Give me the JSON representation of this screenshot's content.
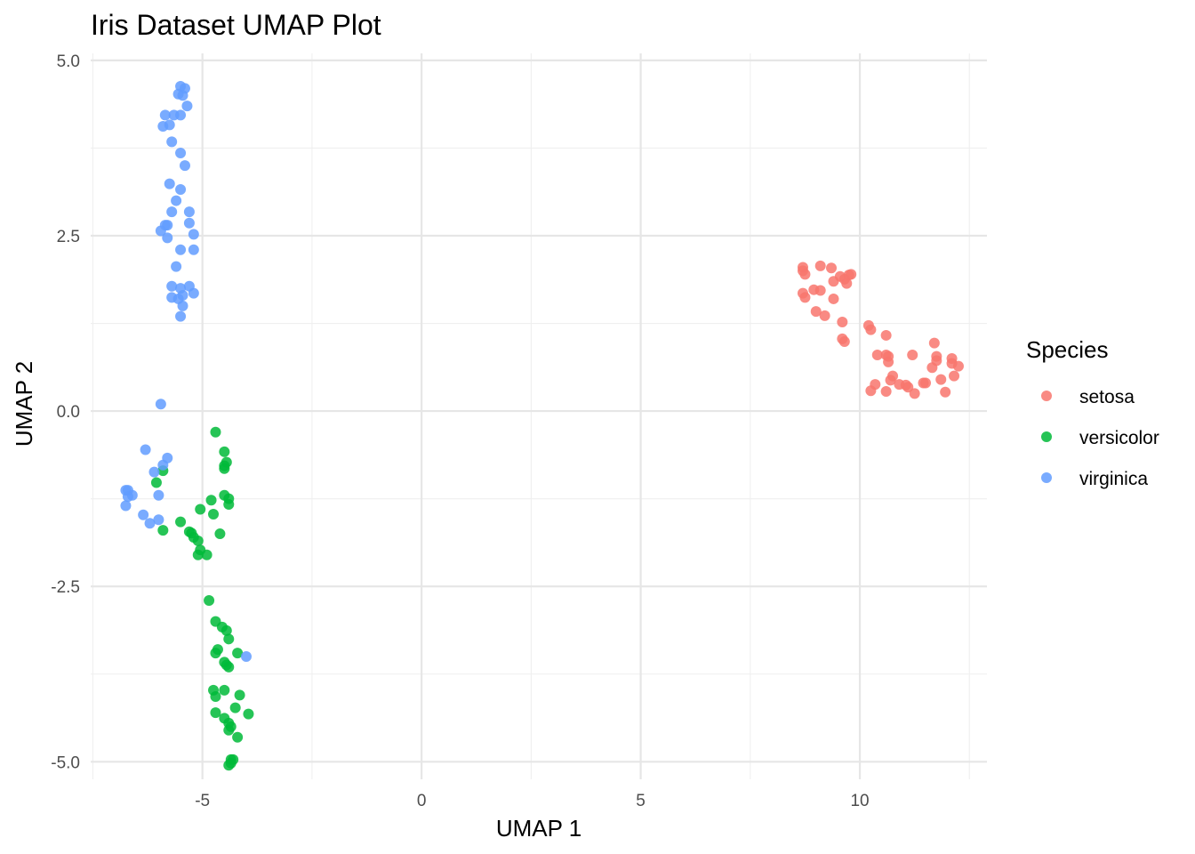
{
  "chart_data": {
    "type": "scatter",
    "title": "Iris Dataset UMAP Plot",
    "xlabel": "UMAP 1",
    "ylabel": "UMAP 2",
    "xlim": [
      -7.55,
      12.9
    ],
    "ylim": [
      -5.25,
      5.1
    ],
    "x_ticks": [
      -5,
      0,
      5,
      10
    ],
    "x_tick_labels": [
      "-5",
      "0",
      "5",
      "10"
    ],
    "y_ticks": [
      -5,
      -2.5,
      0,
      2.5,
      5
    ],
    "y_tick_labels": [
      "-5.0",
      "-2.5",
      "0.0",
      "2.5",
      "5.0"
    ],
    "grid": true,
    "legend": {
      "title": "Species",
      "position": "right"
    },
    "series": [
      {
        "name": "setosa",
        "color": "#F8766D",
        "points": [
          [
            8.7,
            2.05
          ],
          [
            8.7,
            2.0
          ],
          [
            8.75,
            1.95
          ],
          [
            9.1,
            2.07
          ],
          [
            9.35,
            2.04
          ],
          [
            9.55,
            1.92
          ],
          [
            9.65,
            1.88
          ],
          [
            9.75,
            1.94
          ],
          [
            9.8,
            1.95
          ],
          [
            9.4,
            1.85
          ],
          [
            9.7,
            1.82
          ],
          [
            8.7,
            1.68
          ],
          [
            8.75,
            1.62
          ],
          [
            8.95,
            1.73
          ],
          [
            9.1,
            1.72
          ],
          [
            9.4,
            1.6
          ],
          [
            9.0,
            1.42
          ],
          [
            9.2,
            1.36
          ],
          [
            9.6,
            1.27
          ],
          [
            9.6,
            1.03
          ],
          [
            9.65,
            0.99
          ],
          [
            10.2,
            1.22
          ],
          [
            10.25,
            1.16
          ],
          [
            10.6,
            1.08
          ],
          [
            10.4,
            0.8
          ],
          [
            10.6,
            0.8
          ],
          [
            10.65,
            0.78
          ],
          [
            10.65,
            0.7
          ],
          [
            11.2,
            0.8
          ],
          [
            11.7,
            0.97
          ],
          [
            11.75,
            0.78
          ],
          [
            11.75,
            0.72
          ],
          [
            12.1,
            0.75
          ],
          [
            12.1,
            0.68
          ],
          [
            12.25,
            0.64
          ],
          [
            10.75,
            0.5
          ],
          [
            10.7,
            0.44
          ],
          [
            10.35,
            0.38
          ],
          [
            10.25,
            0.29
          ],
          [
            10.6,
            0.28
          ],
          [
            10.9,
            0.38
          ],
          [
            11.05,
            0.37
          ],
          [
            11.1,
            0.34
          ],
          [
            11.25,
            0.25
          ],
          [
            11.45,
            0.4
          ],
          [
            11.5,
            0.4
          ],
          [
            11.65,
            0.62
          ],
          [
            11.85,
            0.45
          ],
          [
            11.95,
            0.27
          ],
          [
            12.15,
            0.5
          ]
        ]
      },
      {
        "name": "versicolor",
        "color": "#00BA38",
        "points": [
          [
            -4.7,
            -0.3
          ],
          [
            -4.5,
            -0.58
          ],
          [
            -4.45,
            -0.73
          ],
          [
            -4.5,
            -0.78
          ],
          [
            -4.5,
            -0.82
          ],
          [
            -4.5,
            -1.2
          ],
          [
            -4.4,
            -1.25
          ],
          [
            -4.4,
            -1.33
          ],
          [
            -4.8,
            -1.27
          ],
          [
            -5.05,
            -1.4
          ],
          [
            -4.75,
            -1.47
          ],
          [
            -4.6,
            -1.75
          ],
          [
            -5.5,
            -1.58
          ],
          [
            -5.3,
            -1.72
          ],
          [
            -5.25,
            -1.74
          ],
          [
            -5.2,
            -1.8
          ],
          [
            -5.1,
            -1.85
          ],
          [
            -5.05,
            -1.98
          ],
          [
            -5.1,
            -2.05
          ],
          [
            -4.9,
            -2.05
          ],
          [
            -6.05,
            -1.02
          ],
          [
            -5.9,
            -0.85
          ],
          [
            -5.9,
            -1.7
          ],
          [
            -4.85,
            -2.7
          ],
          [
            -4.7,
            -3.0
          ],
          [
            -4.55,
            -3.08
          ],
          [
            -4.45,
            -3.13
          ],
          [
            -4.4,
            -3.25
          ],
          [
            -4.65,
            -3.4
          ],
          [
            -4.7,
            -3.45
          ],
          [
            -4.2,
            -3.45
          ],
          [
            -4.5,
            -3.58
          ],
          [
            -4.45,
            -3.62
          ],
          [
            -4.4,
            -3.65
          ],
          [
            -4.75,
            -3.98
          ],
          [
            -4.5,
            -3.98
          ],
          [
            -4.15,
            -4.05
          ],
          [
            -4.7,
            -4.07
          ],
          [
            -4.7,
            -4.3
          ],
          [
            -4.25,
            -4.23
          ],
          [
            -4.5,
            -4.38
          ],
          [
            -4.4,
            -4.45
          ],
          [
            -4.35,
            -4.5
          ],
          [
            -4.4,
            -4.55
          ],
          [
            -4.2,
            -4.65
          ],
          [
            -3.95,
            -4.32
          ],
          [
            -4.35,
            -4.97
          ],
          [
            -4.3,
            -4.97
          ],
          [
            -4.35,
            -5.02
          ],
          [
            -4.4,
            -5.05
          ]
        ]
      },
      {
        "name": "virginica",
        "color": "#619CFF",
        "points": [
          [
            -5.5,
            4.63
          ],
          [
            -5.4,
            4.6
          ],
          [
            -5.55,
            4.52
          ],
          [
            -5.45,
            4.5
          ],
          [
            -5.35,
            4.35
          ],
          [
            -5.85,
            4.22
          ],
          [
            -5.65,
            4.22
          ],
          [
            -5.5,
            4.22
          ],
          [
            -5.9,
            4.06
          ],
          [
            -5.75,
            4.08
          ],
          [
            -5.7,
            3.84
          ],
          [
            -5.5,
            3.68
          ],
          [
            -5.4,
            3.5
          ],
          [
            -5.75,
            3.24
          ],
          [
            -5.5,
            3.16
          ],
          [
            -5.6,
            3.0
          ],
          [
            -5.3,
            2.84
          ],
          [
            -5.7,
            2.84
          ],
          [
            -5.3,
            2.68
          ],
          [
            -5.8,
            2.65
          ],
          [
            -5.85,
            2.65
          ],
          [
            -5.95,
            2.57
          ],
          [
            -5.8,
            2.47
          ],
          [
            -5.2,
            2.52
          ],
          [
            -5.5,
            2.3
          ],
          [
            -5.2,
            2.3
          ],
          [
            -5.6,
            2.06
          ],
          [
            -5.7,
            1.78
          ],
          [
            -5.5,
            1.75
          ],
          [
            -5.3,
            1.78
          ],
          [
            -5.2,
            1.68
          ],
          [
            -5.45,
            1.65
          ],
          [
            -5.7,
            1.62
          ],
          [
            -5.55,
            1.6
          ],
          [
            -5.45,
            1.5
          ],
          [
            -5.5,
            1.35
          ],
          [
            -5.95,
            0.1
          ],
          [
            -6.3,
            -0.55
          ],
          [
            -5.8,
            -0.67
          ],
          [
            -5.9,
            -0.77
          ],
          [
            -6.1,
            -0.87
          ],
          [
            -6.75,
            -1.13
          ],
          [
            -6.7,
            -1.13
          ],
          [
            -6.6,
            -1.2
          ],
          [
            -6.7,
            -1.22
          ],
          [
            -6.0,
            -1.2
          ],
          [
            -6.75,
            -1.35
          ],
          [
            -6.35,
            -1.48
          ],
          [
            -6.0,
            -1.55
          ],
          [
            -6.2,
            -1.6
          ],
          [
            -4.0,
            -3.5
          ]
        ]
      }
    ]
  }
}
